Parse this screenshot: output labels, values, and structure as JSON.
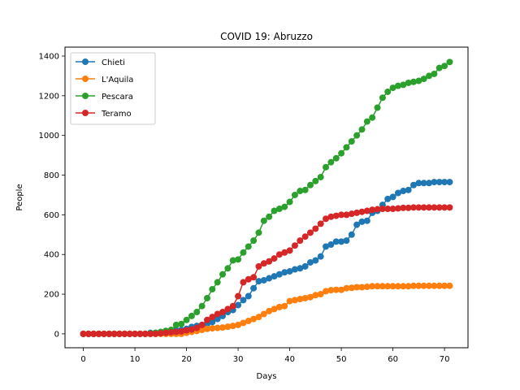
{
  "chart_data": {
    "type": "line",
    "title": "COVID 19: Abruzzo",
    "xlabel": "Days",
    "ylabel": "People",
    "xlim": [
      -3.55,
      74.55
    ],
    "ylim": [
      -70,
      1445
    ],
    "xticks": [
      0,
      10,
      20,
      30,
      40,
      50,
      60,
      70
    ],
    "yticks": [
      0,
      200,
      400,
      600,
      800,
      1000,
      1200,
      1400
    ],
    "grid": false,
    "legend_position": "top-left",
    "series": [
      {
        "name": "Chieti",
        "color": "#1f77b4",
        "y": [
          0,
          0,
          0,
          0,
          0,
          0,
          0,
          0,
          0,
          0,
          0,
          0,
          0,
          5,
          5,
          8,
          10,
          15,
          18,
          20,
          25,
          35,
          40,
          45,
          50,
          60,
          75,
          90,
          110,
          120,
          145,
          170,
          190,
          230,
          265,
          270,
          280,
          290,
          300,
          310,
          315,
          325,
          330,
          340,
          360,
          370,
          390,
          440,
          450,
          465,
          465,
          470,
          500,
          550,
          565,
          570,
          610,
          620,
          650,
          680,
          690,
          710,
          720,
          725,
          750,
          760,
          760,
          760,
          765,
          765,
          765,
          765
        ]
      },
      {
        "name": "L'Aquila",
        "color": "#ff7f0e",
        "y": [
          0,
          0,
          0,
          0,
          0,
          0,
          0,
          0,
          0,
          0,
          0,
          0,
          0,
          0,
          0,
          0,
          0,
          0,
          0,
          0,
          5,
          10,
          15,
          20,
          25,
          28,
          30,
          32,
          36,
          40,
          45,
          55,
          65,
          75,
          85,
          100,
          115,
          125,
          135,
          140,
          165,
          170,
          175,
          180,
          185,
          195,
          200,
          215,
          220,
          222,
          222,
          230,
          232,
          235,
          235,
          237,
          240,
          240,
          240,
          240,
          240,
          240,
          240,
          240,
          242,
          242,
          242,
          242,
          242,
          242,
          242,
          242
        ]
      },
      {
        "name": "Pescara",
        "color": "#2ca02c",
        "y": [
          0,
          0,
          0,
          0,
          0,
          0,
          0,
          0,
          0,
          0,
          0,
          0,
          0,
          2,
          5,
          10,
          15,
          20,
          45,
          50,
          70,
          90,
          110,
          140,
          180,
          225,
          260,
          300,
          330,
          370,
          375,
          410,
          440,
          470,
          510,
          570,
          590,
          620,
          630,
          640,
          665,
          700,
          720,
          725,
          750,
          770,
          790,
          840,
          865,
          885,
          910,
          940,
          970,
          1000,
          1030,
          1070,
          1090,
          1140,
          1190,
          1220,
          1240,
          1250,
          1255,
          1265,
          1270,
          1275,
          1285,
          1300,
          1310,
          1340,
          1350,
          1370
        ]
      },
      {
        "name": "Teramo",
        "color": "#d62728",
        "y": [
          0,
          0,
          0,
          0,
          0,
          0,
          0,
          0,
          0,
          0,
          0,
          0,
          0,
          0,
          0,
          3,
          5,
          8,
          10,
          12,
          18,
          22,
          30,
          45,
          70,
          85,
          100,
          110,
          125,
          140,
          190,
          260,
          275,
          285,
          340,
          355,
          365,
          380,
          400,
          410,
          420,
          445,
          470,
          490,
          510,
          530,
          555,
          580,
          590,
          595,
          600,
          600,
          605,
          610,
          615,
          620,
          625,
          628,
          630,
          630,
          630,
          632,
          635,
          635,
          637,
          637,
          637,
          637,
          637,
          637,
          637,
          637
        ]
      }
    ]
  }
}
